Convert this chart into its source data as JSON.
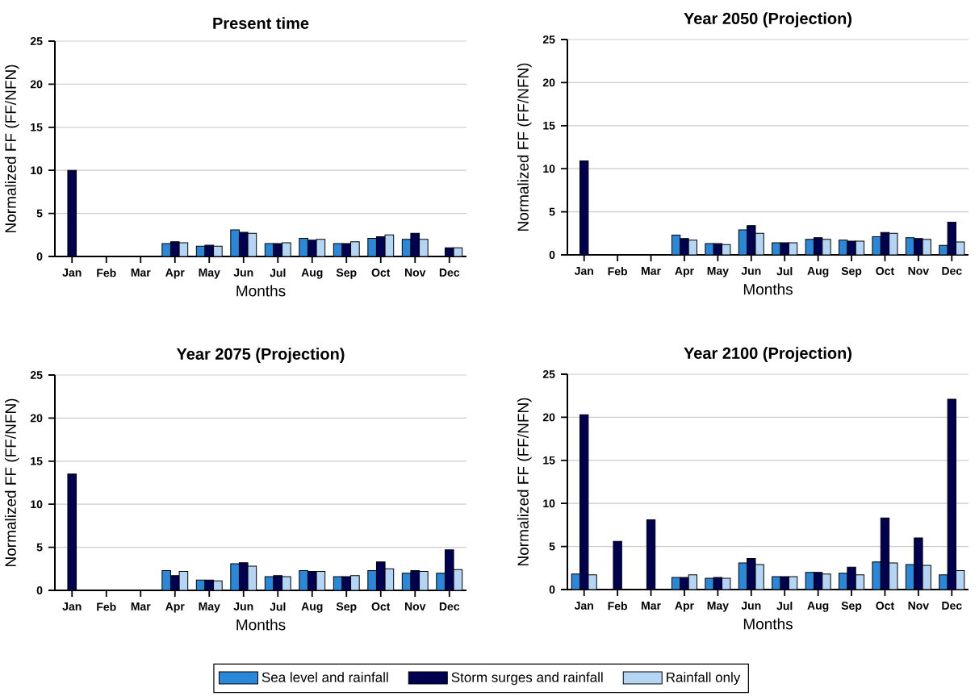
{
  "chart_data": [
    {
      "type": "bar",
      "title": "Present time",
      "xlabel": "Months",
      "ylabel": "Normalized FF (FF/NFN)",
      "categories": [
        "Jan",
        "Feb",
        "Mar",
        "Apr",
        "May",
        "Jun",
        "Jul",
        "Aug",
        "Sep",
        "Oct",
        "Nov",
        "Dec"
      ],
      "ylim": [
        0,
        25
      ],
      "yticks": [
        0,
        5,
        10,
        15,
        20,
        25
      ],
      "grid": "y",
      "series": [
        {
          "color": "#2b88d8",
          "values": [
            null,
            null,
            null,
            1.5,
            1.2,
            3.1,
            1.5,
            2.1,
            1.5,
            2.1,
            2.0,
            null
          ]
        },
        {
          "color": "#000050",
          "values": [
            10,
            null,
            null,
            1.7,
            1.3,
            2.8,
            1.5,
            1.9,
            1.5,
            2.3,
            2.7,
            1.0
          ]
        },
        {
          "color": "#b4d5f3",
          "values": [
            null,
            null,
            null,
            1.6,
            1.2,
            2.7,
            1.6,
            2.0,
            1.7,
            2.5,
            2.0,
            1.0
          ]
        }
      ]
    },
    {
      "type": "bar",
      "title": "Year 2050 (Projection)",
      "xlabel": "Months",
      "ylabel": "Normalized FF (FF/NFN)",
      "categories": [
        "Jan",
        "Feb",
        "Mar",
        "Apr",
        "May",
        "Jun",
        "Jul",
        "Aug",
        "Sep",
        "Oct",
        "Nov",
        "Dec"
      ],
      "ylim": [
        0,
        25
      ],
      "yticks": [
        0,
        5,
        10,
        15,
        20,
        25
      ],
      "grid": "y",
      "series": [
        {
          "color": "#2b88d8",
          "values": [
            null,
            null,
            null,
            2.3,
            1.3,
            2.9,
            1.4,
            1.8,
            1.7,
            2.1,
            2.0,
            1.1
          ]
        },
        {
          "color": "#000050",
          "values": [
            10.9,
            null,
            null,
            1.9,
            1.3,
            3.4,
            1.4,
            2.0,
            1.6,
            2.6,
            1.9,
            3.8
          ]
        },
        {
          "color": "#b4d5f3",
          "values": [
            null,
            null,
            null,
            1.7,
            1.2,
            2.5,
            1.4,
            1.8,
            1.6,
            2.5,
            1.8,
            1.5
          ]
        }
      ]
    },
    {
      "type": "bar",
      "title": "Year 2075 (Projection)",
      "xlabel": "Months",
      "ylabel": "Normalized FF (FF/NFN)",
      "categories": [
        "Jan",
        "Feb",
        "Mar",
        "Apr",
        "May",
        "Jun",
        "Jul",
        "Aug",
        "Sep",
        "Oct",
        "Nov",
        "Dec"
      ],
      "ylim": [
        0,
        25
      ],
      "yticks": [
        0,
        5,
        10,
        15,
        20,
        25
      ],
      "grid": "y",
      "series": [
        {
          "color": "#2b88d8",
          "values": [
            null,
            null,
            null,
            2.3,
            1.2,
            3.1,
            1.6,
            2.3,
            1.6,
            2.3,
            2.0,
            2.0
          ]
        },
        {
          "color": "#000050",
          "values": [
            13.5,
            null,
            null,
            1.7,
            1.2,
            3.2,
            1.7,
            2.2,
            1.6,
            3.3,
            2.3,
            4.7
          ]
        },
        {
          "color": "#b4d5f3",
          "values": [
            null,
            null,
            null,
            2.2,
            1.1,
            2.8,
            1.6,
            2.2,
            1.7,
            2.5,
            2.2,
            2.4
          ]
        }
      ]
    },
    {
      "type": "bar",
      "title": "Year 2100 (Projection)",
      "xlabel": "Months",
      "ylabel": "Normalized FF (FF/NFN)",
      "categories": [
        "Jan",
        "Feb",
        "Mar",
        "Apr",
        "May",
        "Jun",
        "Jul",
        "Aug",
        "Sep",
        "Oct",
        "Nov",
        "Dec"
      ],
      "ylim": [
        0,
        25
      ],
      "yticks": [
        0,
        5,
        10,
        15,
        20,
        25
      ],
      "grid": "y",
      "legend": "bottom",
      "series": [
        {
          "name": "Sea level and rainfall",
          "color": "#2b88d8",
          "values": [
            1.8,
            null,
            null,
            1.4,
            1.3,
            3.1,
            1.5,
            2.0,
            1.9,
            3.2,
            2.9,
            1.7
          ]
        },
        {
          "name": "Storm surges and rainfall",
          "color": "#000050",
          "values": [
            20.3,
            5.6,
            8.1,
            1.4,
            1.4,
            3.6,
            1.5,
            2.0,
            2.6,
            8.3,
            6.0,
            22.1
          ]
        },
        {
          "name": "Rainfall only",
          "color": "#b4d5f3",
          "values": [
            1.7,
            null,
            null,
            1.7,
            1.3,
            2.9,
            1.5,
            1.8,
            1.7,
            3.1,
            2.8,
            2.2
          ]
        }
      ]
    }
  ]
}
